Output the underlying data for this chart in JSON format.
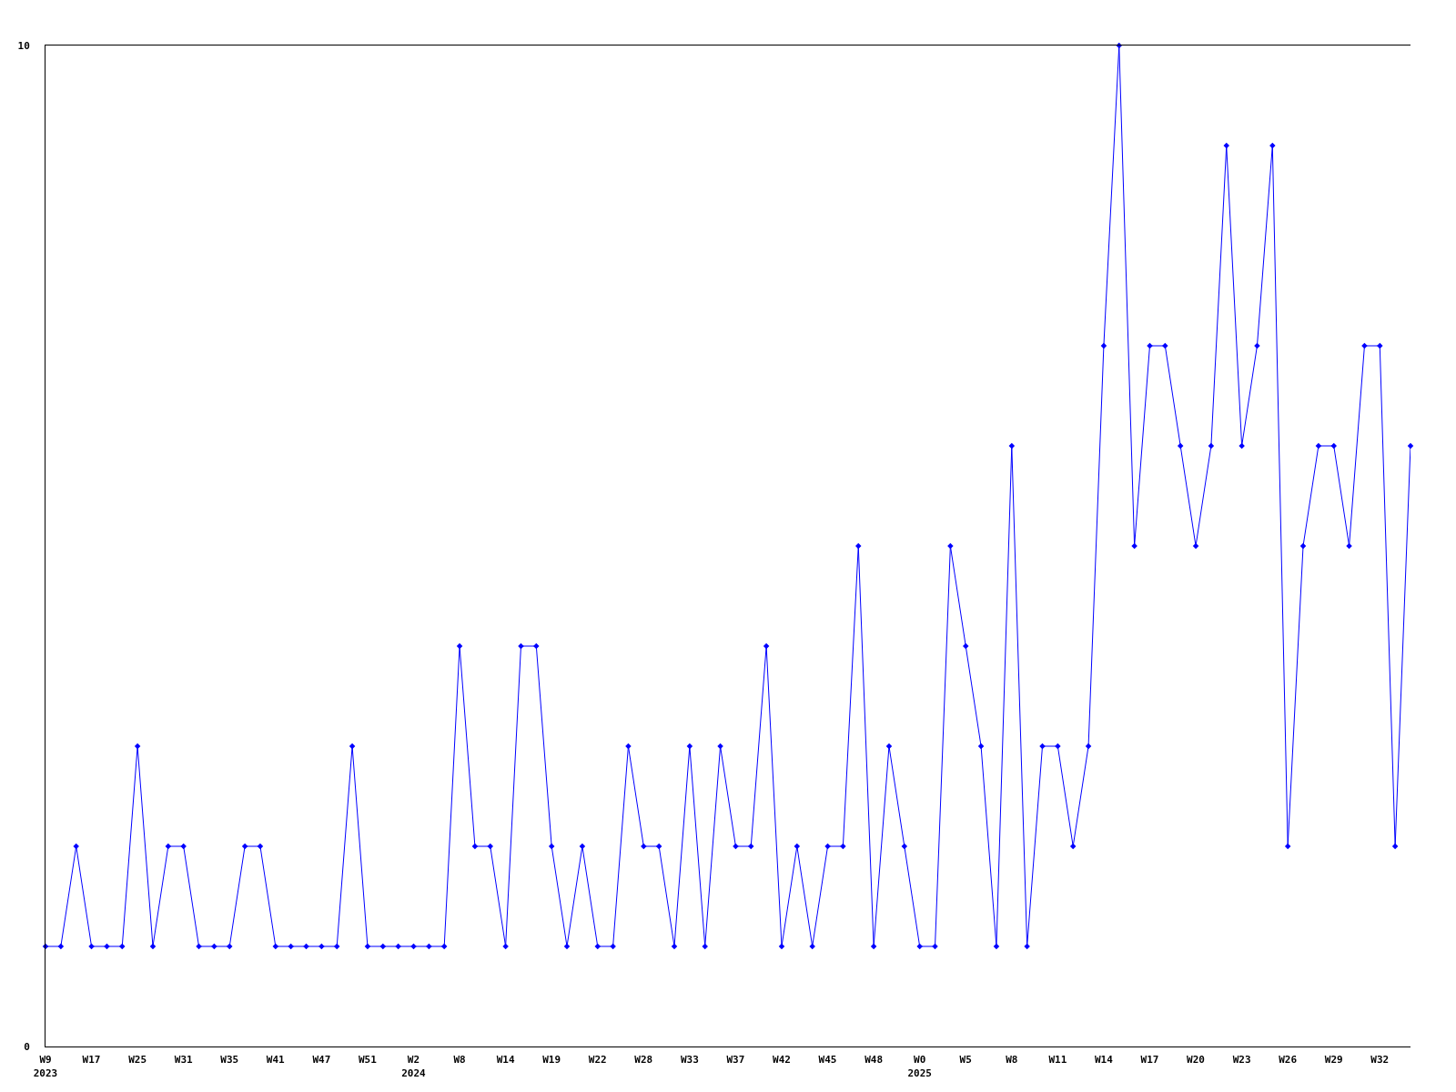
{
  "chart_data": {
    "type": "line",
    "categories": [
      "W9\n2023",
      null,
      null,
      "W17",
      null,
      null,
      "W25",
      null,
      null,
      "W31",
      null,
      null,
      "W35",
      null,
      null,
      "W41",
      null,
      null,
      "W47",
      null,
      null,
      "W51",
      null,
      null,
      "W2\n2024",
      null,
      null,
      "W8",
      null,
      null,
      "W14",
      null,
      null,
      "W19",
      null,
      null,
      "W22",
      null,
      null,
      "W28",
      null,
      null,
      "W33",
      null,
      null,
      "W37",
      null,
      null,
      "W42",
      null,
      null,
      "W45",
      null,
      null,
      "W48",
      null,
      null,
      "W0\n2025",
      null,
      null,
      "W5",
      null,
      null,
      "W8",
      null,
      null,
      "W11",
      null,
      null,
      "W14",
      null,
      null,
      "W17",
      null,
      null,
      "W20",
      null,
      null,
      "W23",
      null,
      null,
      "W26",
      null,
      null,
      "W29",
      null,
      null,
      "W32",
      null,
      null
    ],
    "values": [
      1,
      1,
      2,
      1,
      1,
      1,
      3,
      1,
      2,
      2,
      1,
      1,
      1,
      2,
      2,
      1,
      1,
      1,
      1,
      1,
      3,
      1,
      1,
      1,
      1,
      1,
      1,
      4,
      2,
      2,
      1,
      4,
      4,
      2,
      1,
      2,
      1,
      1,
      3,
      2,
      2,
      1,
      3,
      1,
      3,
      2,
      2,
      4,
      1,
      2,
      1,
      2,
      2,
      5,
      1,
      3,
      2,
      1,
      1,
      5,
      4,
      3,
      1,
      6,
      1,
      3,
      3,
      2,
      3,
      7,
      10,
      5,
      7,
      7,
      6,
      5,
      6,
      9,
      6,
      7,
      9,
      2,
      5,
      6,
      6,
      5,
      7,
      7,
      2,
      6
    ],
    "color": "#0000ff",
    "ylim": [
      0,
      10
    ],
    "yticks": [
      0,
      10
    ],
    "marker": "diamond",
    "line_style": "solid"
  }
}
